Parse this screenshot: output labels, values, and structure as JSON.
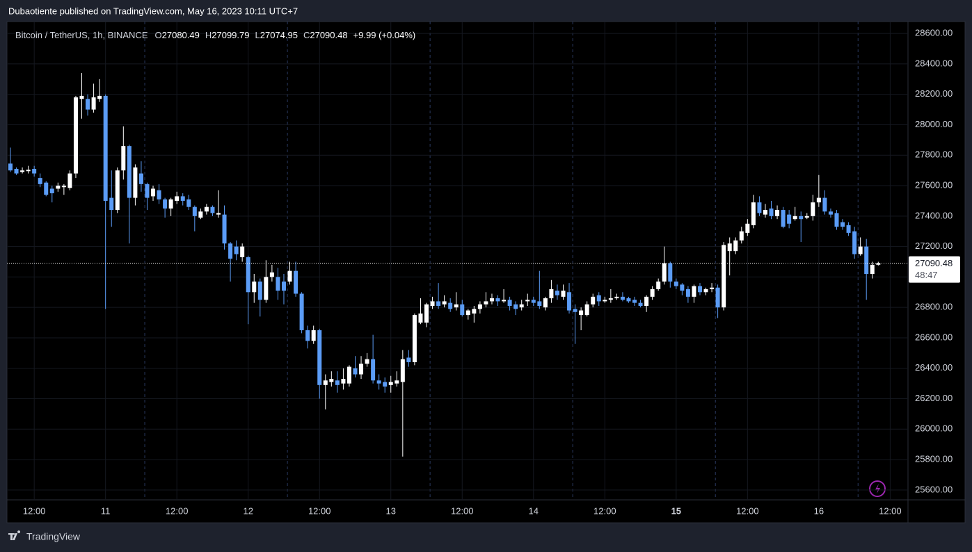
{
  "publisher_line": "Dubaotiente published on TradingView.com, May 16, 2023 10:11 UTC+7",
  "brand": "TradingView",
  "chart_data": {
    "type": "candlestick",
    "title": "Bitcoin / TetherUS, 1h, BINANCE",
    "legend_fields": [
      {
        "label": "O",
        "value": 27080.49
      },
      {
        "label": "H",
        "value": 27099.79
      },
      {
        "label": "L",
        "value": 27074.95
      },
      {
        "label": "C",
        "value": 27090.48
      }
    ],
    "change": "+9.99 (+0.04%)",
    "last_price": 27090.48,
    "countdown": "48:47",
    "up_color": "#ffffff",
    "down_color": "#5b9cf6",
    "grid": true,
    "xlim": [
      -0.35,
      151
    ],
    "xticks": [
      {
        "value": 4,
        "label": "12:00"
      },
      {
        "value": 16,
        "label": "11"
      },
      {
        "value": 28,
        "label": "12:00"
      },
      {
        "value": 40,
        "label": "12"
      },
      {
        "value": 52,
        "label": "12:00"
      },
      {
        "value": 64,
        "label": "13"
      },
      {
        "value": 76,
        "label": "12:00"
      },
      {
        "value": 88,
        "label": "14"
      },
      {
        "value": 100,
        "label": "12:00"
      },
      {
        "value": 112,
        "label": "15",
        "bold": true
      },
      {
        "value": 124,
        "label": "12:00"
      },
      {
        "value": 136,
        "label": "16"
      },
      {
        "value": 148,
        "label": "12:00"
      }
    ],
    "ylim": [
      25540,
      28660
    ],
    "yticks": [
      {
        "value": 25600,
        "label": "25600.00"
      },
      {
        "value": 25800,
        "label": "25800.00"
      },
      {
        "value": 26000,
        "label": "26000.00"
      },
      {
        "value": 26200,
        "label": "26200.00"
      },
      {
        "value": 26400,
        "label": "26400.00"
      },
      {
        "value": 26600,
        "label": "26600.00"
      },
      {
        "value": 26800,
        "label": "26800.00"
      },
      {
        "value": 27000,
        "label": "27000.00"
      },
      {
        "value": 27200,
        "label": "27200.00"
      },
      {
        "value": 27400,
        "label": "27400.00"
      },
      {
        "value": 27600,
        "label": "27600.00"
      },
      {
        "value": 27800,
        "label": "27800.00"
      },
      {
        "value": 28000,
        "label": "28000.00"
      },
      {
        "value": 28200,
        "label": "28200.00"
      },
      {
        "value": 28400,
        "label": "28400.00"
      },
      {
        "value": 28600,
        "label": "28600.00"
      }
    ],
    "open": [
      27745,
      27710,
      27690,
      27695,
      27710,
      27650,
      27620,
      27580,
      27580,
      27590,
      27585,
      27680,
      28170,
      28170,
      28100,
      28170,
      28190,
      27520,
      27440,
      27700,
      27860,
      27520,
      27680,
      27610,
      27530,
      27570,
      27510,
      27450,
      27500,
      27530,
      27510,
      27460,
      27390,
      27430,
      27460,
      27410,
      27410,
      27220,
      27200,
      27130,
      27130,
      26900,
      26970,
      26850,
      27000,
      27000,
      26970,
      26970,
      27040,
      26890,
      26650,
      26580,
      26650,
      26290,
      26310,
      26320,
      26300,
      26300,
      26400,
      26360,
      26430,
      26460,
      26320,
      26310,
      26290,
      26300,
      26310,
      26470,
      26440,
      26700,
      26700,
      26810,
      26840,
      26820,
      26830,
      26800,
      26820,
      26750,
      26760,
      26790,
      26820,
      26840,
      26860,
      26840,
      26850,
      26820,
      26800,
      26840,
      26850,
      26840,
      26800,
      26860,
      26910,
      26870,
      26900,
      26790,
      26750,
      26750,
      26820,
      26880,
      26840,
      26850,
      26860,
      26870,
      26860,
      26850,
      26830,
      26810,
      26870,
      26920,
      26970,
      27090,
      26970,
      26950,
      26920,
      26870,
      26940,
      26900,
      26920,
      26930,
      26800,
      27170,
      27170,
      27240,
      27290,
      27340,
      27490,
      27410,
      27450,
      27400,
      27440,
      27410,
      27380,
      27400,
      27390,
      27400,
      27490,
      27520,
      27430,
      27420,
      27360,
      27340,
      27300,
      27150,
      27200,
      27020,
      27080.49
    ],
    "high": [
      27850,
      27720,
      27720,
      27730,
      27730,
      27680,
      27630,
      27600,
      27620,
      27610,
      27700,
      28190,
      28340,
      28200,
      28270,
      28300,
      28200,
      27700,
      27720,
      27990,
      27870,
      27740,
      27760,
      27620,
      27600,
      27610,
      27520,
      27520,
      27560,
      27550,
      27540,
      27470,
      27450,
      27480,
      27470,
      27570,
      27470,
      27230,
      27240,
      27220,
      27140,
      27020,
      26990,
      27110,
      27080,
      27060,
      27020,
      27100,
      27100,
      26900,
      26680,
      26680,
      26660,
      26360,
      26380,
      26380,
      26400,
      26420,
      26480,
      26480,
      26500,
      26620,
      26360,
      26340,
      26350,
      26380,
      26520,
      26520,
      26760,
      26860,
      26830,
      26870,
      26960,
      26880,
      26860,
      26900,
      26850,
      26790,
      26810,
      26840,
      26900,
      26890,
      26880,
      26920,
      26870,
      26840,
      26850,
      26890,
      26870,
      27040,
      26870,
      26980,
      26950,
      26950,
      26960,
      26820,
      26800,
      26840,
      26890,
      26900,
      26870,
      26920,
      26890,
      26900,
      26870,
      26870,
      26850,
      26880,
      26940,
      26990,
      27200,
      27100,
      26990,
      26960,
      26940,
      26950,
      26960,
      26930,
      26960,
      26950,
      27230,
      27260,
      27260,
      27330,
      27380,
      27540,
      27530,
      27480,
      27500,
      27470,
      27460,
      27440,
      27460,
      27430,
      27420,
      27540,
      27670,
      27570,
      27450,
      27440,
      27380,
      27360,
      27330,
      27260,
      27250,
      27100,
      27099.79
    ],
    "low": [
      27690,
      27670,
      27680,
      27680,
      27660,
      27590,
      27530,
      27490,
      27560,
      27540,
      27570,
      27650,
      28040,
      28060,
      28080,
      28150,
      26790,
      27330,
      27420,
      27640,
      27220,
      27470,
      27560,
      27440,
      27500,
      27480,
      27390,
      27400,
      27480,
      27470,
      27440,
      27300,
      27380,
      27410,
      27400,
      27390,
      27180,
      26970,
      27110,
      27100,
      26690,
      26830,
      26740,
      26830,
      26970,
      26850,
      26820,
      26950,
      26870,
      26630,
      26530,
      26560,
      26200,
      26130,
      26280,
      26240,
      26260,
      26280,
      26340,
      26330,
      26410,
      26300,
      26260,
      26240,
      26240,
      26280,
      25820,
      26410,
      26420,
      26690,
      26670,
      26790,
      26790,
      26800,
      26770,
      26780,
      26740,
      26720,
      26700,
      26760,
      26800,
      26820,
      26810,
      26830,
      26780,
      26750,
      26780,
      26810,
      26810,
      26790,
      26780,
      26830,
      26850,
      26850,
      26760,
      26560,
      26650,
      26740,
      26800,
      26810,
      26830,
      26830,
      26850,
      26840,
      26830,
      26810,
      26800,
      26770,
      26850,
      26910,
      26950,
      26930,
      26920,
      26880,
      26830,
      26830,
      26880,
      26880,
      26900,
      26730,
      26780,
      27010,
      27150,
      27220,
      27270,
      27320,
      27400,
      27390,
      27380,
      27380,
      27320,
      27320,
      27370,
      27230,
      27380,
      27370,
      27460,
      27410,
      27390,
      27310,
      27310,
      27270,
      27120,
      27140,
      26850,
      26990,
      27074.95
    ],
    "close": [
      27700,
      27680,
      27700,
      27705,
      27680,
      27610,
      27540,
      27550,
      27600,
      27600,
      27680,
      28180,
      28190,
      28100,
      28180,
      28190,
      27500,
      27440,
      27700,
      27860,
      27520,
      27720,
      27610,
      27520,
      27580,
      27510,
      27450,
      27510,
      27530,
      27500,
      27460,
      27400,
      27430,
      27460,
      27420,
      27420,
      27220,
      27120,
      27150,
      27200,
      26900,
      26970,
      26850,
      27000,
      27030,
      26910,
      26910,
      27040,
      26890,
      26650,
      26580,
      26650,
      26290,
      26320,
      26330,
      26290,
      26330,
      26410,
      26360,
      26430,
      26460,
      26320,
      26300,
      26280,
      26310,
      26320,
      26460,
      26440,
      26750,
      26760,
      26820,
      26840,
      26810,
      26840,
      26790,
      26820,
      26750,
      26780,
      26790,
      26820,
      26840,
      26860,
      26840,
      26850,
      26810,
      26790,
      26820,
      26850,
      26830,
      26810,
      26860,
      26920,
      26880,
      26910,
      26780,
      26770,
      26780,
      26820,
      26870,
      26840,
      26850,
      26860,
      26870,
      26850,
      26840,
      26830,
      26810,
      26870,
      26920,
      26970,
      27090,
      26970,
      26940,
      26910,
      26870,
      26940,
      26900,
      26920,
      26930,
      26800,
      27210,
      27220,
      27240,
      27300,
      27350,
      27490,
      27420,
      27440,
      27400,
      27440,
      27330,
      27350,
      27400,
      27380,
      27400,
      27490,
      27520,
      27430,
      27410,
      27330,
      27330,
      27290,
      27150,
      27200,
      27020,
      27080,
      27090.48
    ]
  }
}
